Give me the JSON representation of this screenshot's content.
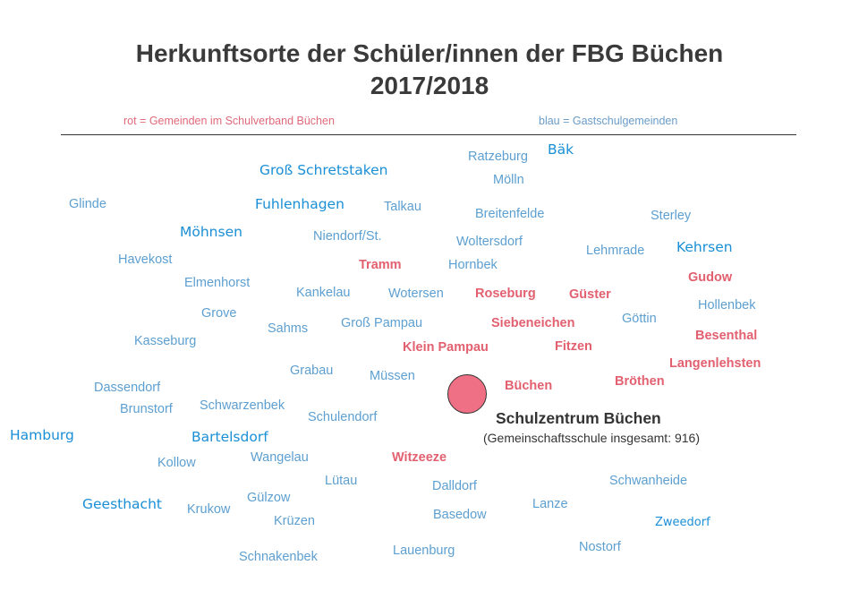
{
  "title": {
    "line1": "Herkunftsorte der Schüler/innen der FBG Büchen",
    "line2": "2017/2018"
  },
  "legend": {
    "red": "rot = Gemeinden im Schulverband Büchen",
    "blue": "blau = Gastschulgemeinden"
  },
  "colors": {
    "red": "#e2606f",
    "blue": "#5d9fd0",
    "cyan": "#1a8fd6",
    "school_dot": "#ef6f84"
  },
  "school": {
    "name": "Schulzentrum Büchen",
    "subtitle": "(Gemeinschaftsschule insgesamt: 916)"
  },
  "places": {
    "ratzeburg": "Ratzeburg",
    "baek": "Bäk",
    "gross_schretstaken": "Groß Schretstaken",
    "moelln": "Mölln",
    "glinde": "Glinde",
    "fuhlenhagen": "Fuhlenhagen",
    "talkau": "Talkau",
    "breitenfelde": "Breitenfelde",
    "sterley": "Sterley",
    "moehnsen": "Möhnsen",
    "niendorf": "Niendorf/St.",
    "woltersdorf": "Woltersdorf",
    "kehrsen": "Kehrsen",
    "lehmrade": "Lehmrade",
    "havekost": "Havekost",
    "tramm": "Tramm",
    "hornbek": "Hornbek",
    "gudow": "Gudow",
    "elmenhorst": "Elmenhorst",
    "kankelau": "Kankelau",
    "wotersen": "Wotersen",
    "roseburg": "Roseburg",
    "guester": "Güster",
    "hollenbek": "Hollenbek",
    "grove": "Grove",
    "goettin": "Göttin",
    "sahms": "Sahms",
    "gross_pampau": "Groß Pampau",
    "siebeneichen": "Siebeneichen",
    "besenthal": "Besenthal",
    "kasseburg": "Kasseburg",
    "klein_pampau": "Klein Pampau",
    "fitzen": "Fitzen",
    "langenlehsten": "Langenlehsten",
    "grabau": "Grabau",
    "muessen": "Müssen",
    "dassendorf": "Dassendorf",
    "buechen": "Büchen",
    "broethen": "Bröthen",
    "brunstorf": "Brunstorf",
    "schwarzenbek": "Schwarzenbek",
    "schulendorf": "Schulendorf",
    "hamburg": "Hamburg",
    "bartelsdorf": "Bartelsdorf",
    "kollow": "Kollow",
    "wangelau": "Wangelau",
    "witzeeze": "Witzeeze",
    "luetau": "Lütau",
    "schwanheide": "Schwanheide",
    "dalldorf": "Dalldorf",
    "geesthacht": "Geesthacht",
    "guelzow": "Gülzow",
    "krukow": "Krukow",
    "lanze": "Lanze",
    "basedow": "Basedow",
    "zweedorf": "Zweedorf",
    "kruezen": "Krüzen",
    "nostorf": "Nostorf",
    "lauenburg": "Lauenburg",
    "schnakenbek": "Schnakenbek"
  }
}
